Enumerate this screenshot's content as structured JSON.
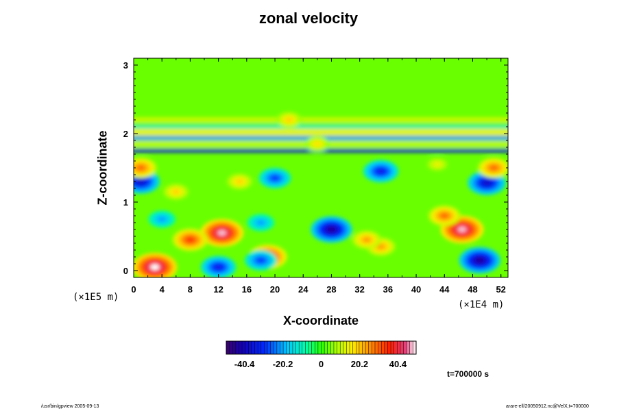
{
  "chart_data": {
    "type": "heatmap",
    "title": "zonal velocity",
    "xlabel": "X-coordinate",
    "ylabel": "Z-coordinate",
    "x_unit": "(×1E4 m)",
    "y_unit": "(×1E5 m)",
    "xlim": [
      0,
      53
    ],
    "ylim": [
      -0.1,
      3.1
    ],
    "x_ticks": [
      "0",
      "4",
      "8",
      "12",
      "16",
      "20",
      "24",
      "28",
      "32",
      "36",
      "40",
      "44",
      "48",
      "52"
    ],
    "y_ticks": [
      "0",
      "1",
      "2",
      "3"
    ],
    "colorbar": {
      "min": -50,
      "max": 50,
      "tick_values": [
        -40.4,
        -20.2,
        0,
        20.2,
        40.4
      ],
      "tick_labels": [
        "-40.4",
        "-20.2",
        "0",
        "20.2",
        "40.4"
      ]
    },
    "features": [
      {
        "x": 3,
        "z": 0.05,
        "value": 50
      },
      {
        "x": 12.5,
        "z": 0.55,
        "value": 48
      },
      {
        "x": 8,
        "z": 0.45,
        "value": 35
      },
      {
        "x": 19,
        "z": 0.2,
        "value": 40
      },
      {
        "x": 46.5,
        "z": 0.6,
        "value": 48
      },
      {
        "x": 44,
        "z": 0.8,
        "value": 30
      },
      {
        "x": 35,
        "z": 0.35,
        "value": 25
      },
      {
        "x": 33,
        "z": 0.45,
        "value": 25
      },
      {
        "x": 28,
        "z": 0.6,
        "value": -45
      },
      {
        "x": 49,
        "z": 0.15,
        "value": -45
      },
      {
        "x": 12,
        "z": 0.05,
        "value": -35
      },
      {
        "x": 18,
        "z": 0.15,
        "value": -30
      },
      {
        "x": 18,
        "z": 0.7,
        "value": -22
      },
      {
        "x": 4,
        "z": 0.75,
        "value": -22
      },
      {
        "x": 1,
        "z": 1.3,
        "value": -40
      },
      {
        "x": 20,
        "z": 1.35,
        "value": -30
      },
      {
        "x": 35,
        "z": 1.45,
        "value": -35
      },
      {
        "x": 50,
        "z": 1.28,
        "value": -40
      },
      {
        "x": 1,
        "z": 1.5,
        "value": 30
      },
      {
        "x": 51,
        "z": 1.5,
        "value": 30
      },
      {
        "x": 6,
        "z": 1.15,
        "value": 20
      },
      {
        "x": 26,
        "z": 1.85,
        "value": 18
      },
      {
        "x": 22,
        "z": 2.2,
        "value": 20
      },
      {
        "x": 15,
        "z": 1.3,
        "value": 20
      },
      {
        "x": 43,
        "z": 1.55,
        "value": 15
      }
    ],
    "bands": [
      {
        "z": 1.75,
        "value": -35
      },
      {
        "z": 1.93,
        "value": -22
      },
      {
        "z": 2.02,
        "value": 15
      },
      {
        "z": 2.1,
        "value": -12
      },
      {
        "z": 2.2,
        "value": 12
      },
      {
        "z": 1.85,
        "value": 10
      }
    ]
  },
  "time_label": "t=700000 s",
  "footer_left": "/usr/bin/gpview 2005-09-13",
  "footer_right": "arare-ell/20050912.nc@VelX,t=700000"
}
